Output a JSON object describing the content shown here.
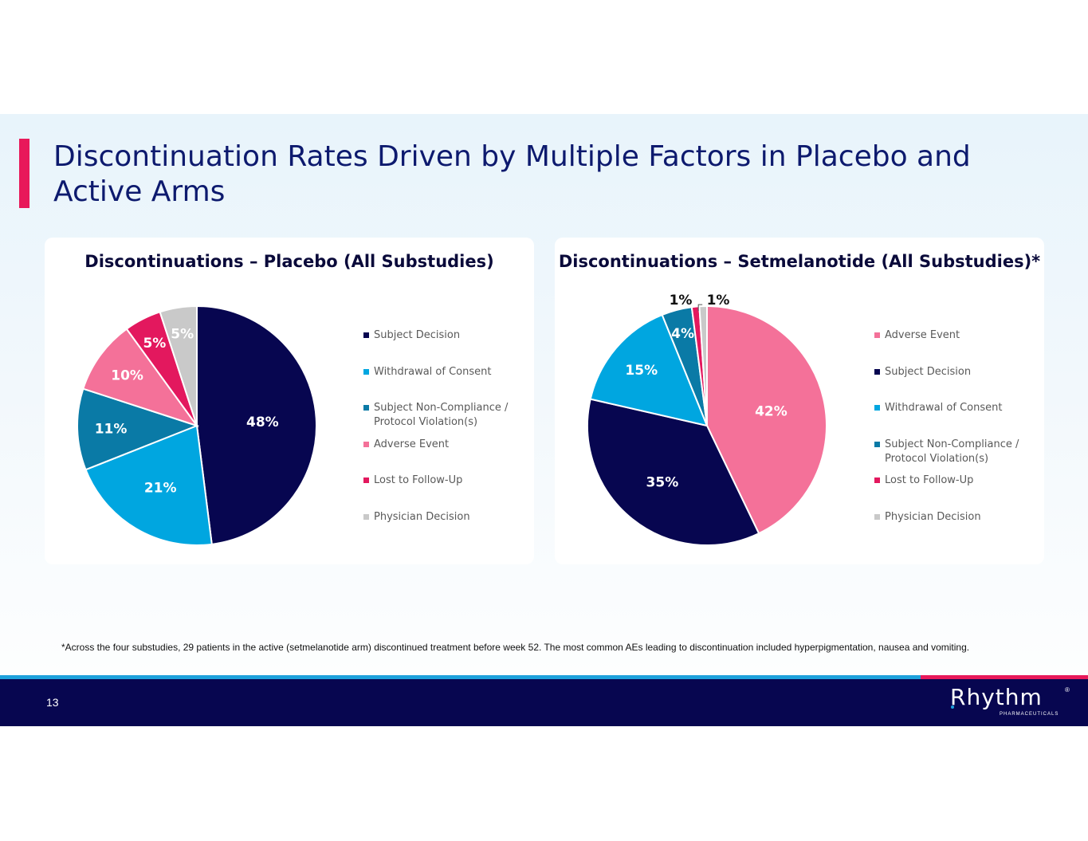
{
  "slide": {
    "title": "Discontinuation Rates Driven by Multiple Factors in Placebo and Active Arms",
    "footnote": "*Across the four substudies, 29 patients in the active (setmelanotide arm) discontinued treatment before week 52. The most common AEs leading to discontinuation included hyperpigmentation, nausea and vomiting.",
    "page_number": "13",
    "logo": {
      "name": "Rhythm",
      "sub": "PHARMACEUTICALS",
      "reg": "®"
    }
  },
  "colors": {
    "title": "#0d1a6e",
    "accent_pink": "#e8195a",
    "footer": "#070650",
    "footer_blue": "#1da1dc"
  },
  "chart_data": [
    {
      "type": "pie",
      "title": "Discontinuations – Placebo (All Substudies)",
      "categories": [
        "Subject Decision",
        "Withdrawal of Consent",
        "Subject Non-Compliance / Protocol Violation(s)",
        "Adverse Event",
        "Lost to Follow-Up",
        "Physician Decision"
      ],
      "values": [
        48,
        21,
        11,
        10,
        5,
        5
      ],
      "labels": [
        "48%",
        "21%",
        "11%",
        "10%",
        "5%",
        "5%"
      ],
      "slice_colors": [
        "#070650",
        "#00a6e0",
        "#0a7aa6",
        "#f47199",
        "#e3185e",
        "#c9c9c9"
      ],
      "legend": {
        "position": "right",
        "items": [
          "Subject Decision",
          "Withdrawal of Consent",
          "Subject Non-Compliance / Protocol Violation(s)",
          "Adverse Event",
          "Lost to Follow-Up",
          "Physician Decision"
        ],
        "colors": [
          "#070650",
          "#00a6e0",
          "#0a7aa6",
          "#f47199",
          "#e3185e",
          "#c9c9c9"
        ]
      }
    },
    {
      "type": "pie",
      "title": "Discontinuations – Setmelanotide (All Substudies)*",
      "categories": [
        "Adverse Event",
        "Subject Decision",
        "Withdrawal of Consent",
        "Subject Non-Compliance / Protocol Violation(s)",
        "Lost to Follow-Up",
        "Physician Decision"
      ],
      "values": [
        42,
        35,
        15,
        4,
        1,
        1
      ],
      "labels": [
        "42%",
        "35%",
        "15%",
        "4%",
        "1%",
        "1%"
      ],
      "slice_colors": [
        "#f47199",
        "#070650",
        "#00a6e0",
        "#0a7aa6",
        "#e3185e",
        "#c9c9c9"
      ],
      "legend": {
        "position": "right",
        "items": [
          "Adverse Event",
          "Subject Decision",
          "Withdrawal of Consent",
          "Subject Non-Compliance / Protocol Violation(s)",
          "Lost to Follow-Up",
          "Physician Decision"
        ],
        "colors": [
          "#f47199",
          "#070650",
          "#00a6e0",
          "#0a7aa6",
          "#e3185e",
          "#c9c9c9"
        ]
      }
    }
  ]
}
